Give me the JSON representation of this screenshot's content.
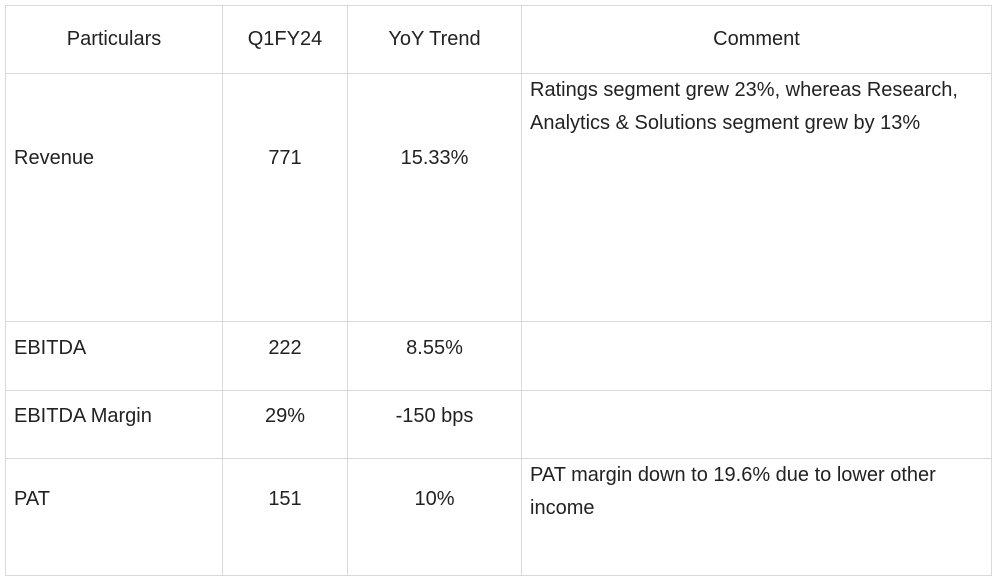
{
  "table": {
    "headers": [
      "Particulars",
      "Q1FY24",
      "YoY Trend",
      "Comment"
    ],
    "rows": [
      {
        "particular": "Revenue",
        "q1fy24": "771",
        "yoy": "15.33%",
        "comment": "Ratings segment grew 23%, whereas Research, Analytics & Solutions segment grew by 13%"
      },
      {
        "particular": "EBITDA",
        "q1fy24": "222",
        "yoy": "8.55%",
        "comment": ""
      },
      {
        "particular": "EBITDA Margin",
        "q1fy24": "29%",
        "yoy": "-150 bps",
        "comment": ""
      },
      {
        "particular": "PAT",
        "q1fy24": "151",
        "yoy": "10%",
        "comment": "PAT margin down to 19.6% due to lower other income"
      }
    ]
  }
}
